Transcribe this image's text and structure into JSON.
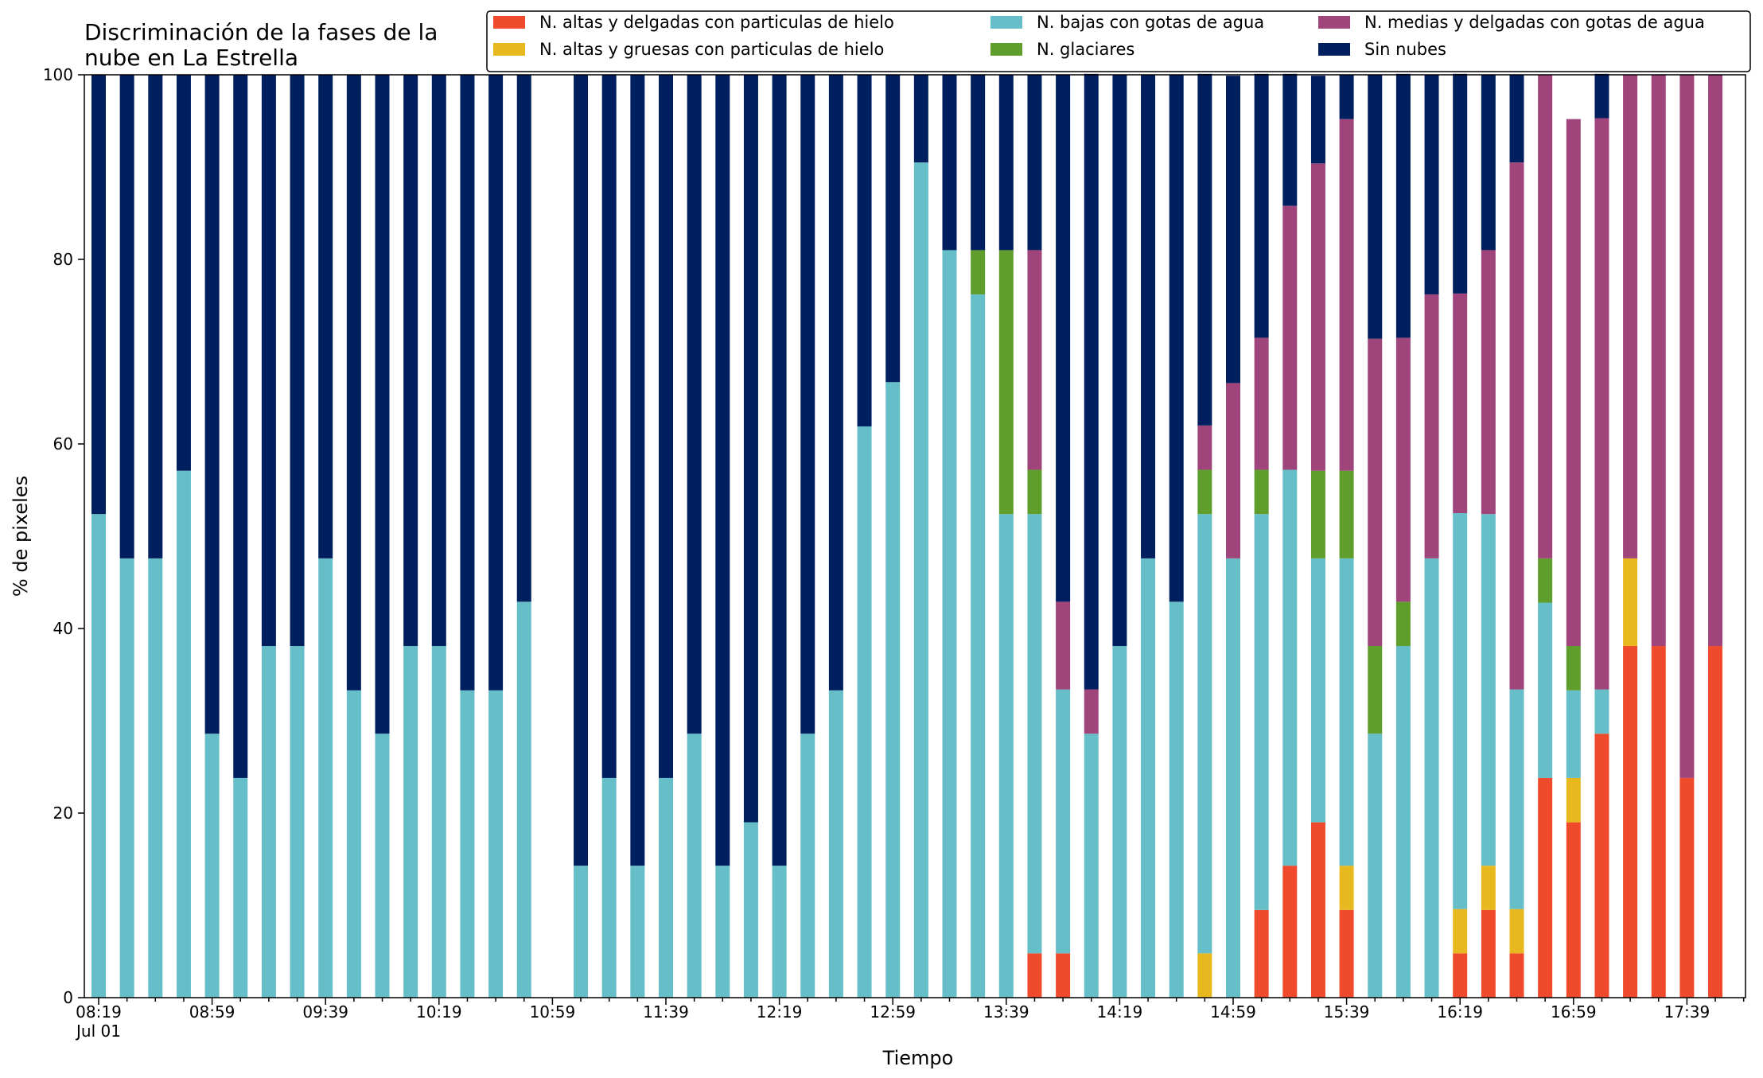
{
  "chart_data": {
    "type": "bar",
    "stacked": true,
    "title": "Discriminación de la fases de la\nnube en La Estrella",
    "xlabel": "Tiempo",
    "ylabel": "% de pixeles",
    "ylim": [
      0,
      100
    ],
    "yticks": [
      0,
      20,
      40,
      60,
      80,
      100
    ],
    "xtick_labels": [
      "08:19\nJul 01",
      "08:59",
      "09:39",
      "10:19",
      "10:59",
      "11:39",
      "12:19",
      "12:59",
      "13:39",
      "14:19",
      "14:59",
      "15:39",
      "16:19",
      "16:59",
      "17:39"
    ],
    "categories": [
      "08:19",
      "08:29",
      "08:39",
      "08:49",
      "08:59",
      "09:09",
      "09:19",
      "09:29",
      "09:39",
      "09:49",
      "09:59",
      "10:09",
      "10:19",
      "10:29",
      "10:39",
      "10:49",
      "10:59",
      "11:09",
      "11:19",
      "11:29",
      "11:39",
      "11:49",
      "11:59",
      "12:09",
      "12:19",
      "12:29",
      "12:39",
      "12:49",
      "12:59",
      "13:09",
      "13:19",
      "13:29",
      "13:39",
      "13:49",
      "13:59",
      "14:09",
      "14:19",
      "14:29",
      "14:39",
      "14:49",
      "14:59",
      "15:09",
      "15:19",
      "15:29",
      "15:39",
      "15:49",
      "15:59",
      "16:09",
      "16:19",
      "16:29",
      "16:39",
      "16:49",
      "16:59",
      "17:09",
      "17:19",
      "17:29",
      "17:39",
      "17:49"
    ],
    "legend_position": "top-right",
    "grid": false,
    "series": [
      {
        "name": "N. altas y delgadas con particulas de hielo",
        "color": "#f04a2c",
        "values": [
          0,
          0,
          0,
          0,
          0,
          0,
          0,
          0,
          0,
          0,
          0,
          0,
          0,
          0,
          0,
          0,
          0,
          0,
          0,
          0,
          0,
          0,
          0,
          0,
          0,
          0,
          0,
          0,
          0,
          0,
          0,
          0,
          0,
          4.8,
          4.8,
          0,
          0,
          0,
          0,
          0,
          0,
          9.5,
          14.3,
          19,
          9.5,
          0,
          0,
          0,
          4.8,
          9.5,
          4.8,
          23.8,
          19,
          28.6,
          38.1,
          38.1,
          23.8,
          38.1
        ]
      },
      {
        "name": "N. altas y gruesas con particulas de hielo",
        "color": "#e8b91e",
        "values": [
          0,
          0,
          0,
          0,
          0,
          0,
          0,
          0,
          0,
          0,
          0,
          0,
          0,
          0,
          0,
          0,
          0,
          0,
          0,
          0,
          0,
          0,
          0,
          0,
          0,
          0,
          0,
          0,
          0,
          0,
          0,
          0,
          0,
          0,
          0,
          0,
          0,
          0,
          0,
          4.8,
          0,
          0,
          0,
          0,
          4.8,
          0,
          0,
          0,
          4.8,
          4.8,
          4.8,
          0,
          4.8,
          0,
          9.5,
          0,
          0,
          0
        ]
      },
      {
        "name": "N. bajas con gotas de agua",
        "color": "#66bec9",
        "values": [
          52.4,
          47.6,
          47.6,
          57.1,
          28.6,
          23.8,
          38.1,
          38.1,
          47.6,
          33.3,
          28.6,
          38.1,
          38.1,
          33.3,
          33.3,
          42.9,
          0,
          14.3,
          23.8,
          14.3,
          23.8,
          28.6,
          14.3,
          19,
          14.3,
          28.6,
          33.3,
          61.9,
          66.7,
          90.5,
          81,
          76.2,
          52.4,
          47.6,
          28.6,
          28.6,
          38.1,
          47.6,
          42.9,
          47.6,
          47.6,
          42.9,
          42.9,
          28.6,
          33.3,
          28.6,
          38.1,
          47.6,
          42.9,
          38.1,
          23.8,
          19,
          9.5,
          4.8,
          0,
          0,
          0,
          0
        ]
      },
      {
        "name": "N. glaciares",
        "color": "#5f9e2c",
        "values": [
          0,
          0,
          0,
          0,
          0,
          0,
          0,
          0,
          0,
          0,
          0,
          0,
          0,
          0,
          0,
          0,
          0,
          0,
          0,
          0,
          0,
          0,
          0,
          0,
          0,
          0,
          0,
          0,
          0,
          0,
          0,
          4.8,
          28.6,
          4.8,
          0,
          0,
          0,
          0,
          0,
          4.8,
          0,
          4.8,
          0,
          9.5,
          9.5,
          9.5,
          4.8,
          0,
          0,
          0,
          0,
          4.8,
          4.8,
          0,
          0,
          0,
          0,
          0
        ]
      },
      {
        "name": "N. medias y delgadas con gotas de agua",
        "color": "#a0457c",
        "values": [
          0,
          0,
          0,
          0,
          0,
          0,
          0,
          0,
          0,
          0,
          0,
          0,
          0,
          0,
          0,
          0,
          0,
          0,
          0,
          0,
          0,
          0,
          0,
          0,
          0,
          0,
          0,
          0,
          0,
          0,
          0,
          0,
          0,
          23.8,
          9.5,
          4.8,
          0,
          0,
          0,
          4.8,
          19,
          14.3,
          28.6,
          33.3,
          38.1,
          33.3,
          28.6,
          28.6,
          23.8,
          28.6,
          57.1,
          52.4,
          57.1,
          61.9,
          52.4,
          61.9,
          76.2,
          61.9
        ]
      },
      {
        "name": "Sin nubes",
        "color": "#001f5f",
        "values": [
          47.6,
          52.4,
          52.4,
          42.9,
          71.4,
          76.2,
          61.9,
          61.9,
          52.4,
          66.7,
          71.4,
          61.9,
          61.9,
          66.7,
          66.7,
          57.1,
          0,
          85.7,
          76.2,
          85.7,
          76.2,
          71.4,
          85.7,
          81,
          85.7,
          71.4,
          66.7,
          38.1,
          33.3,
          9.5,
          19,
          19,
          19,
          19,
          57.1,
          66.7,
          61.9,
          52.4,
          57.1,
          38.1,
          33.3,
          28.6,
          14.3,
          9.5,
          4.8,
          28.6,
          28.6,
          23.8,
          23.8,
          19,
          9.5,
          0,
          0,
          4.8,
          0,
          0,
          0,
          0
        ]
      }
    ]
  }
}
